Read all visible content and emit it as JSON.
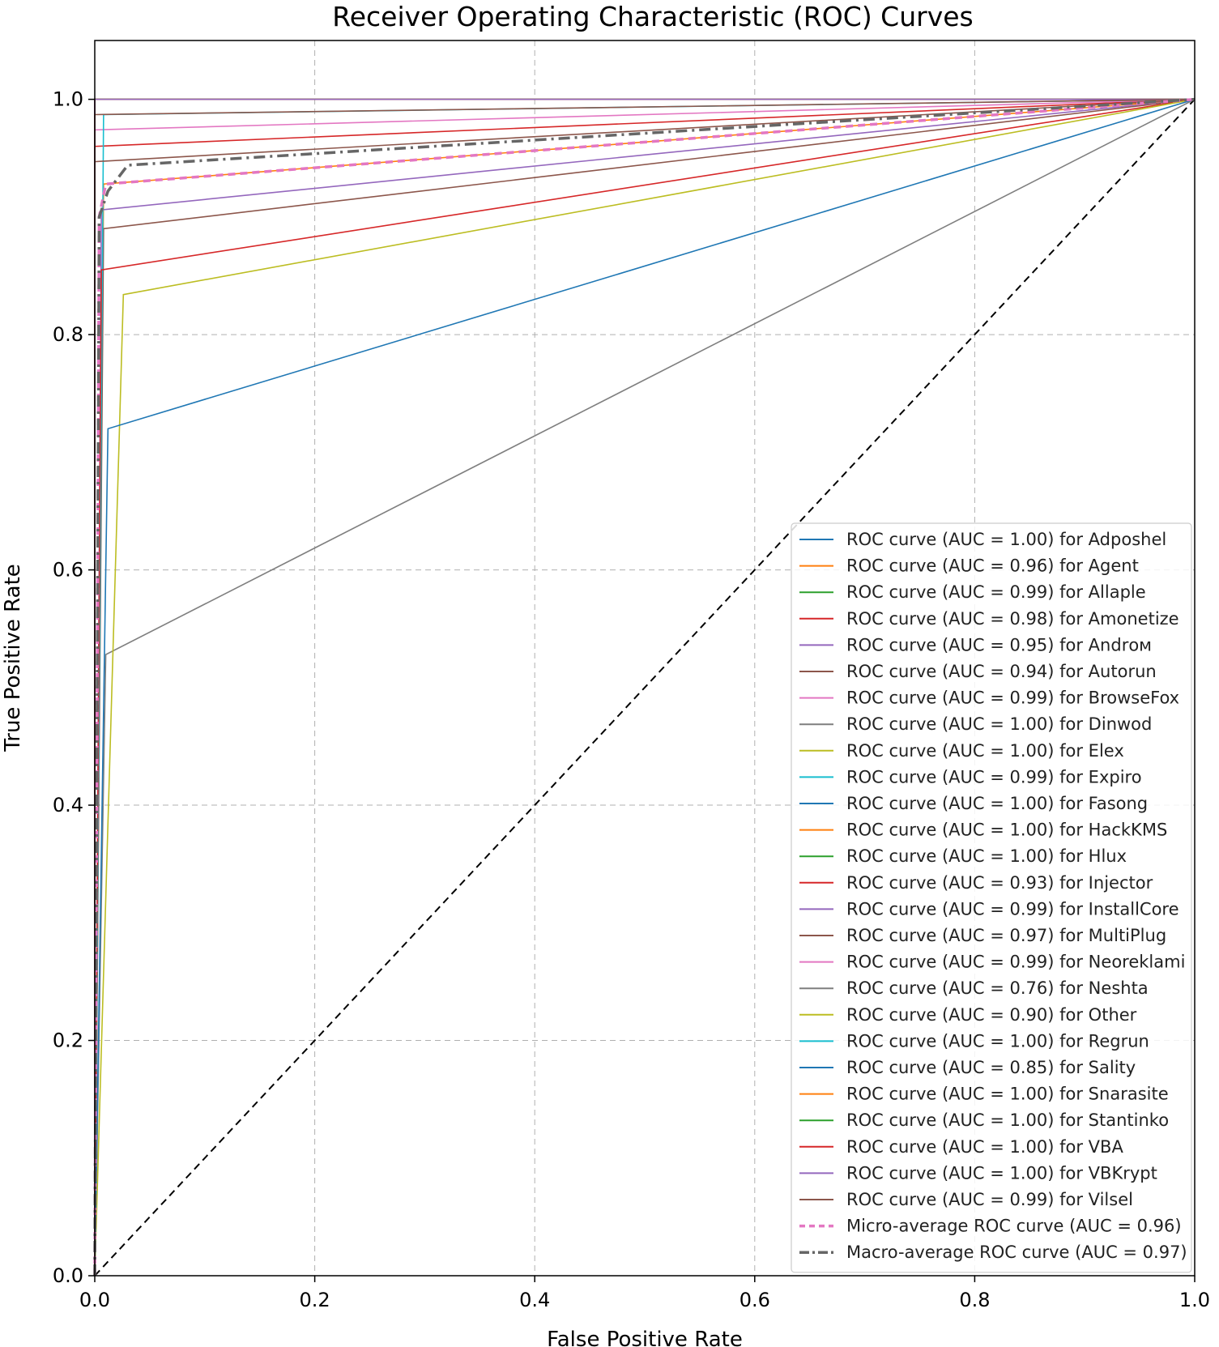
{
  "chart_data": {
    "type": "line",
    "title": "Receiver Operating Characteristic (ROC) Curves",
    "xlabel": "False Positive Rate",
    "ylabel": "True Positive Rate",
    "xlim": [
      0.0,
      1.0
    ],
    "ylim": [
      0.0,
      1.05
    ],
    "xticks": [
      "0.0",
      "0.2",
      "0.4",
      "0.6",
      "0.8",
      "1.0"
    ],
    "yticks": [
      "0.0",
      "0.2",
      "0.4",
      "0.6",
      "0.8",
      "1.0"
    ],
    "grid": true,
    "legend_position": "lower-right",
    "series": [
      {
        "name": "ROC curve (AUC = 1.00) for Adposhel",
        "color": "#1f77b4",
        "style": "solid",
        "x": [
          0,
          0,
          1
        ],
        "y": [
          0,
          1.0,
          1.0
        ]
      },
      {
        "name": "ROC curve (AUC = 0.96) for Agent",
        "color": "#ff7f0e",
        "style": "solid",
        "x": [
          0,
          0.008,
          1
        ],
        "y": [
          0,
          0.928,
          1.0
        ]
      },
      {
        "name": "ROC curve (AUC = 0.99) for Allaple",
        "color": "#2ca02c",
        "style": "solid",
        "x": [
          0,
          0,
          1
        ],
        "y": [
          0,
          1.0,
          1.0
        ]
      },
      {
        "name": "ROC curve (AUC = 0.98) for Amonetize",
        "color": "#d62728",
        "style": "solid",
        "x": [
          0,
          0,
          1
        ],
        "y": [
          0,
          0.96,
          1.0
        ]
      },
      {
        "name": "ROC curve (AUC = 0.95) for Andrом",
        "color": "#9467bd",
        "style": "solid",
        "x": [
          0,
          0.006,
          1
        ],
        "y": [
          0,
          0.906,
          1.0
        ]
      },
      {
        "name": "ROC curve (AUC = 0.94) for Autorun",
        "color": "#8c564b",
        "style": "solid",
        "x": [
          0,
          0.008,
          1
        ],
        "y": [
          0,
          0.89,
          1.0
        ]
      },
      {
        "name": "ROC curve (AUC = 0.99) for BrowseFox",
        "color": "#e377c2",
        "style": "solid",
        "x": [
          0,
          0,
          1
        ],
        "y": [
          0,
          0.974,
          1.0
        ]
      },
      {
        "name": "ROC curve (AUC = 1.00) for Dinwod",
        "color": "#7f7f7f",
        "style": "solid",
        "x": [
          0,
          0,
          1
        ],
        "y": [
          0,
          1.0,
          1.0
        ]
      },
      {
        "name": "ROC curve (AUC = 1.00) for Elex",
        "color": "#bcbd22",
        "style": "solid",
        "x": [
          0,
          0,
          1
        ],
        "y": [
          0,
          1.0,
          1.0
        ]
      },
      {
        "name": "ROC curve (AUC = 0.99) for Expiro",
        "color": "#17becf",
        "style": "solid",
        "x": [
          0,
          0.008,
          1
        ],
        "y": [
          0,
          0.987,
          1.0
        ]
      },
      {
        "name": "ROC curve (AUC = 1.00) for Fasong",
        "color": "#1f77b4",
        "style": "solid",
        "x": [
          0,
          0,
          1
        ],
        "y": [
          0,
          1.0,
          1.0
        ]
      },
      {
        "name": "ROC curve (AUC = 1.00) for HackKMS",
        "color": "#ff7f0e",
        "style": "solid",
        "x": [
          0,
          0,
          1
        ],
        "y": [
          0,
          1.0,
          1.0
        ]
      },
      {
        "name": "ROC curve (AUC = 1.00) for Hlux",
        "color": "#2ca02c",
        "style": "solid",
        "x": [
          0,
          0,
          1
        ],
        "y": [
          0,
          1.0,
          1.0
        ]
      },
      {
        "name": "ROC curve (AUC = 0.93) for Injector",
        "color": "#d62728",
        "style": "solid",
        "x": [
          0,
          0.006,
          1
        ],
        "y": [
          0,
          0.855,
          1.0
        ]
      },
      {
        "name": "ROC curve (AUC = 0.99) for InstallCore",
        "color": "#9467bd",
        "style": "solid",
        "x": [
          0,
          0,
          1
        ],
        "y": [
          0,
          1.0,
          1.0
        ]
      },
      {
        "name": "ROC curve (AUC = 0.97) for MultiPlug",
        "color": "#8c564b",
        "style": "solid",
        "x": [
          0,
          0,
          1
        ],
        "y": [
          0,
          0.947,
          1.0
        ]
      },
      {
        "name": "ROC curve (AUC = 0.99) for Neoreklami",
        "color": "#e377c2",
        "style": "solid",
        "x": [
          0,
          0,
          1
        ],
        "y": [
          0,
          1.0,
          1.0
        ]
      },
      {
        "name": "ROC curve (AUC = 0.76) for Neshta",
        "color": "#7f7f7f",
        "style": "solid",
        "x": [
          0,
          0.01,
          1
        ],
        "y": [
          0,
          0.528,
          1.0
        ]
      },
      {
        "name": "ROC curve (AUC = 0.90) for Other",
        "color": "#bcbd22",
        "style": "solid",
        "x": [
          0,
          0.026,
          1
        ],
        "y": [
          0,
          0.834,
          1.0
        ]
      },
      {
        "name": "ROC curve (AUC = 1.00) for Regrun",
        "color": "#17becf",
        "style": "solid",
        "x": [
          0,
          0,
          1
        ],
        "y": [
          0,
          1.0,
          1.0
        ]
      },
      {
        "name": "ROC curve (AUC = 0.85) for Sality",
        "color": "#1f77b4",
        "style": "solid",
        "x": [
          0,
          0.012,
          1
        ],
        "y": [
          0,
          0.72,
          1.0
        ]
      },
      {
        "name": "ROC curve (AUC = 1.00) for Snarasite",
        "color": "#ff7f0e",
        "style": "solid",
        "x": [
          0,
          0,
          1
        ],
        "y": [
          0,
          1.0,
          1.0
        ]
      },
      {
        "name": "ROC curve (AUC = 1.00) for Stantinko",
        "color": "#2ca02c",
        "style": "solid",
        "x": [
          0,
          0,
          1
        ],
        "y": [
          0,
          1.0,
          1.0
        ]
      },
      {
        "name": "ROC curve (AUC = 1.00) for VBA",
        "color": "#d62728",
        "style": "solid",
        "x": [
          0,
          0,
          1
        ],
        "y": [
          0,
          1.0,
          1.0
        ]
      },
      {
        "name": "ROC curve (AUC = 1.00) for VBKrypt",
        "color": "#9467bd",
        "style": "solid",
        "x": [
          0,
          0,
          1
        ],
        "y": [
          0,
          1.0,
          1.0
        ]
      },
      {
        "name": "ROC curve (AUC = 0.99) for Vilsel",
        "color": "#8c564b",
        "style": "solid",
        "x": [
          0,
          0,
          1
        ],
        "y": [
          0,
          0.987,
          1.0
        ]
      },
      {
        "name": "Micro-average ROC curve (AUC = 0.96)",
        "color": "#e377c2",
        "style": "dashed",
        "x": [
          0,
          0.004,
          0.01,
          1
        ],
        "y": [
          0,
          0.9,
          0.928,
          1.0
        ]
      },
      {
        "name": "Macro-average ROC curve (AUC = 0.97)",
        "color": "#666666",
        "style": "dashdot",
        "x": [
          0,
          0.004,
          0.012,
          0.03,
          1
        ],
        "y": [
          0,
          0.9,
          0.922,
          0.944,
          1.0
        ]
      }
    ],
    "reference_line": {
      "name": "chance",
      "color": "#000000",
      "style": "dashed",
      "x": [
        0,
        1
      ],
      "y": [
        0,
        1
      ]
    }
  }
}
